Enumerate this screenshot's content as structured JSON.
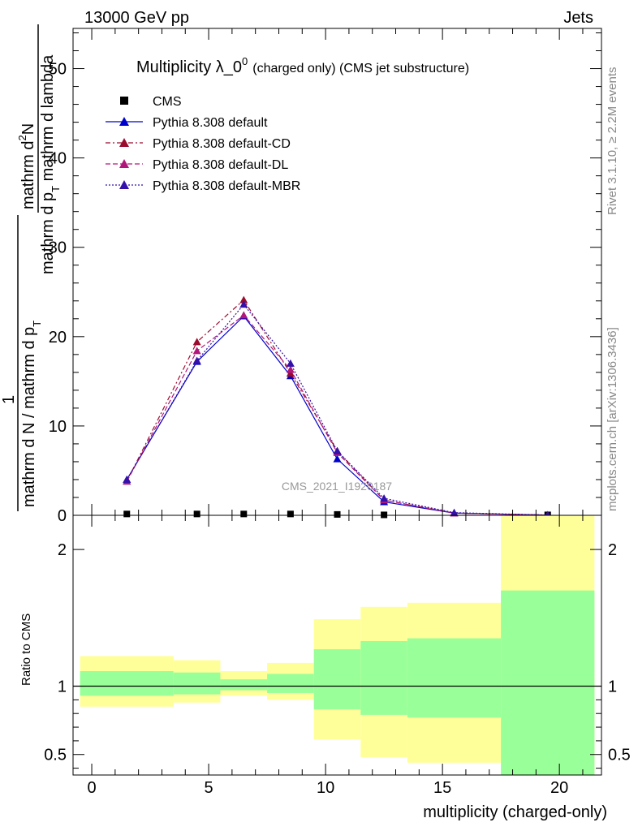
{
  "header": {
    "left": "13000 GeV pp",
    "right": "Jets"
  },
  "side_labels": {
    "rivet": "Rivet 3.1.10, ≥ 2.2M events",
    "mcplots": "mcplots.cern.ch [arXiv:1306.3436]"
  },
  "chart_data": [
    {
      "type": "line",
      "title": "Multiplicity λ_0",
      "title_sup": "0",
      "title_suffix": "(charged only) (CMS jet substructure)",
      "watermark": "CMS_2021_I1920187",
      "ylabel_num": "mathrm d",
      "ylabel_num_sup": "2",
      "ylabel_num_end": "N",
      "ylabel_den": "mathrm d p",
      "ylabel_den_sub": "T",
      "ylabel_den_end": " mathrm d lambda",
      "ylabel_prefix_num": "1",
      "ylabel_prefix_den": "mathrm d N / mathrm d p",
      "ylabel_prefix_den_sub": "T",
      "ylim": [
        0,
        54.5
      ],
      "xlim": [
        -0.8,
        21.8
      ],
      "yticks": [
        0,
        10,
        20,
        30,
        40,
        50
      ],
      "legend_position": "top-left",
      "series": [
        {
          "name": "CMS",
          "color": "#000000",
          "marker": "square",
          "line": "none",
          "x": [
            1.5,
            4.5,
            6.5,
            8.5,
            10.5,
            12.5,
            19.5
          ],
          "y": [
            0.15,
            0.15,
            0.15,
            0.15,
            0.1,
            0.05,
            0.05
          ]
        },
        {
          "name": "Pythia 8.308 default",
          "color": "#0000cc",
          "marker": "triangle",
          "line": "solid",
          "x": [
            1.5,
            4.5,
            6.5,
            8.5,
            10.5,
            12.5,
            15.5,
            19.5
          ],
          "y": [
            4.0,
            17.2,
            22.3,
            15.6,
            6.3,
            1.5,
            0.25,
            0.02
          ]
        },
        {
          "name": "Pythia 8.308 default-CD",
          "color": "#9a0b2e",
          "marker": "triangle",
          "line": "dashdot",
          "x": [
            1.5,
            4.5,
            6.5,
            8.5,
            10.5,
            12.5,
            15.5,
            19.5
          ],
          "y": [
            3.8,
            19.4,
            24.1,
            15.9,
            7.2,
            1.7,
            0.25,
            0.02
          ]
        },
        {
          "name": "Pythia 8.308 default-DL",
          "color": "#b0177a",
          "marker": "triangle",
          "line": "dashed",
          "x": [
            1.5,
            4.5,
            6.5,
            8.5,
            10.5,
            12.5,
            15.5,
            19.5
          ],
          "y": [
            3.8,
            18.4,
            22.4,
            16.3,
            7.0,
            1.7,
            0.25,
            0.02
          ]
        },
        {
          "name": "Pythia 8.308 default-MBR",
          "color": "#3311aa",
          "marker": "triangle",
          "line": "dotted",
          "x": [
            1.5,
            4.5,
            6.5,
            8.5,
            10.5,
            12.5,
            15.5,
            19.5
          ],
          "y": [
            4.0,
            17.3,
            23.6,
            17.0,
            7.2,
            1.9,
            0.3,
            0.03
          ]
        }
      ]
    },
    {
      "type": "area",
      "ylabel": "Ratio to CMS",
      "xlabel": "multiplicity (charged-only)",
      "ylim": [
        0.35,
        2.25
      ],
      "xlim": [
        -0.8,
        21.8
      ],
      "yticks": [
        0.5,
        1,
        2
      ],
      "xticks": [
        0,
        5,
        10,
        15,
        20
      ],
      "reference_line": 1,
      "bands": [
        {
          "x0": -0.5,
          "x1": 3.5,
          "yellow": [
            0.85,
            1.22
          ],
          "green": [
            0.93,
            1.11
          ]
        },
        {
          "x0": 3.5,
          "x1": 5.5,
          "yellow": [
            0.88,
            1.19
          ],
          "green": [
            0.94,
            1.1
          ]
        },
        {
          "x0": 5.5,
          "x1": 7.5,
          "yellow": [
            0.93,
            1.11
          ],
          "green": [
            0.97,
            1.05
          ]
        },
        {
          "x0": 7.5,
          "x1": 9.5,
          "yellow": [
            0.9,
            1.17
          ],
          "green": [
            0.95,
            1.09
          ]
        },
        {
          "x0": 9.5,
          "x1": 11.5,
          "yellow": [
            0.61,
            1.49
          ],
          "green": [
            0.83,
            1.27
          ]
        },
        {
          "x0": 11.5,
          "x1": 13.5,
          "yellow": [
            0.48,
            1.58
          ],
          "green": [
            0.79,
            1.33
          ]
        },
        {
          "x0": 13.5,
          "x1": 17.5,
          "yellow": [
            0.44,
            1.61
          ],
          "green": [
            0.77,
            1.35
          ]
        },
        {
          "x0": 17.5,
          "x1": 21.5,
          "yellow": [
            0.35,
            2.25
          ],
          "green": [
            0.35,
            1.7
          ]
        }
      ],
      "colors": {
        "yellow": "#ffff99",
        "green": "#99ff99"
      }
    }
  ]
}
